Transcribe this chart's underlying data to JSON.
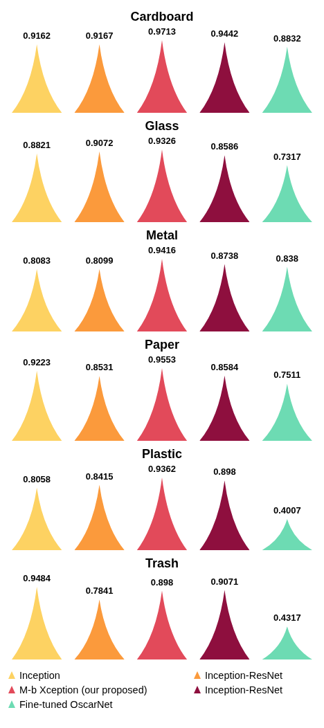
{
  "chart_data": [
    {
      "type": "bar",
      "title": "Cardboard",
      "categories": [
        null
      ],
      "data_labels": true,
      "series": [
        {
          "color": "#fdd262",
          "values": [
            0.9162
          ]
        },
        {
          "color": "#fb9a3c",
          "values": [
            0.9167
          ]
        },
        {
          "color": "#e24a5a",
          "values": [
            0.9713
          ]
        },
        {
          "color": "#8e0f3e",
          "values": [
            0.9442
          ]
        },
        {
          "color": "#6ddbb3",
          "values": [
            0.8832
          ]
        }
      ]
    },
    {
      "type": "bar",
      "title": "Glass",
      "categories": [
        null
      ],
      "data_labels": true,
      "series": [
        {
          "color": "#fdd262",
          "values": [
            0.8821
          ]
        },
        {
          "color": "#fb9a3c",
          "values": [
            0.9072
          ]
        },
        {
          "color": "#e24a5a",
          "values": [
            0.9326
          ]
        },
        {
          "color": "#8e0f3e",
          "values": [
            0.8586
          ]
        },
        {
          "color": "#6ddbb3",
          "values": [
            0.7317
          ]
        }
      ]
    },
    {
      "type": "bar",
      "title": "Metal",
      "categories": [
        null
      ],
      "data_labels": true,
      "series": [
        {
          "color": "#fdd262",
          "values": [
            0.8083
          ]
        },
        {
          "color": "#fb9a3c",
          "values": [
            0.8099
          ]
        },
        {
          "color": "#e24a5a",
          "values": [
            0.9416
          ]
        },
        {
          "color": "#8e0f3e",
          "values": [
            0.8738
          ]
        },
        {
          "color": "#6ddbb3",
          "values": [
            0.838
          ]
        }
      ]
    },
    {
      "type": "bar",
      "title": "Paper",
      "categories": [
        null
      ],
      "data_labels": true,
      "series": [
        {
          "color": "#fdd262",
          "values": [
            0.9223
          ]
        },
        {
          "color": "#fb9a3c",
          "values": [
            0.8531
          ]
        },
        {
          "color": "#e24a5a",
          "values": [
            0.9553
          ]
        },
        {
          "color": "#8e0f3e",
          "values": [
            0.8584
          ]
        },
        {
          "color": "#6ddbb3",
          "values": [
            0.7511
          ]
        }
      ]
    },
    {
      "type": "bar",
      "title": "Plastic",
      "categories": [
        null
      ],
      "data_labels": true,
      "series": [
        {
          "color": "#fdd262",
          "values": [
            0.8058
          ]
        },
        {
          "color": "#fb9a3c",
          "values": [
            0.8415
          ]
        },
        {
          "color": "#e24a5a",
          "values": [
            0.9362
          ]
        },
        {
          "color": "#8e0f3e",
          "values": [
            0.898
          ]
        },
        {
          "color": "#6ddbb3",
          "values": [
            0.4007
          ]
        }
      ]
    },
    {
      "type": "bar",
      "title": "Trash",
      "categories": [
        null
      ],
      "data_labels": true,
      "legend": "bottom",
      "series": [
        {
          "name": "Inception",
          "color": "#fdd262",
          "values": [
            0.9484
          ]
        },
        {
          "name": "Inception-ResNet",
          "color": "#fb9a3c",
          "values": [
            0.7841
          ]
        },
        {
          "name": "M-b Xception (our proposed)",
          "color": "#e24a5a",
          "values": [
            0.898
          ]
        },
        {
          "name": "Inception-ResNet",
          "color": "#8e0f3e",
          "values": [
            0.9071
          ]
        },
        {
          "name": "Fine-tuned OscarNet",
          "color": "#6ddbb3",
          "values": [
            0.4317
          ]
        }
      ]
    }
  ]
}
